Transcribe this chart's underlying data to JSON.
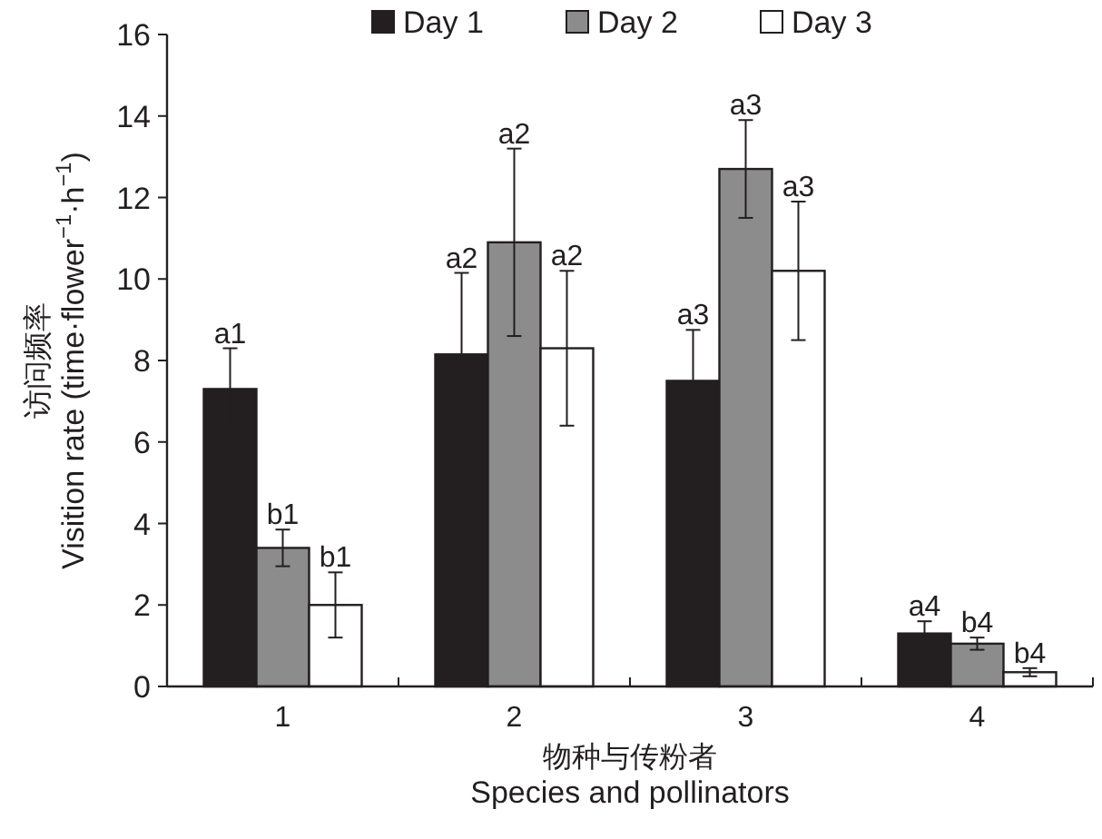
{
  "chart_data": {
    "type": "bar",
    "ylabel": "访问频率\nVisition rate (time·flower$^{−1}$·h$^{−1}$)",
    "xlabel": "物种与传粉者\nSpecies and pollinators",
    "categories": [
      "1",
      "2",
      "3",
      "4"
    ],
    "ylim": [
      0,
      16
    ],
    "yticks": [
      0,
      2,
      4,
      6,
      8,
      10,
      12,
      14,
      16
    ],
    "legend": "top",
    "grid": false,
    "series": [
      {
        "name": "Day 1",
        "color": "#231f20",
        "values": [
          7.3,
          8.15,
          7.5,
          1.3
        ],
        "errors": [
          1.0,
          2.0,
          1.25,
          0.3
        ],
        "value_labels": [
          "a1",
          "a2",
          "a3",
          "a4"
        ]
      },
      {
        "name": "Day 2",
        "color": "#8c8c8c",
        "values": [
          3.4,
          10.9,
          12.7,
          1.05
        ],
        "errors": [
          0.45,
          2.3,
          1.2,
          0.15
        ],
        "value_labels": [
          "b1",
          "a2",
          "a3",
          "b4"
        ]
      },
      {
        "name": "Day 3",
        "color": "#ffffff",
        "values": [
          2.0,
          8.3,
          10.2,
          0.35
        ],
        "errors": [
          0.8,
          1.9,
          1.7,
          0.1
        ],
        "value_labels": [
          "b1",
          "a2",
          "a3",
          "b4"
        ]
      }
    ]
  }
}
